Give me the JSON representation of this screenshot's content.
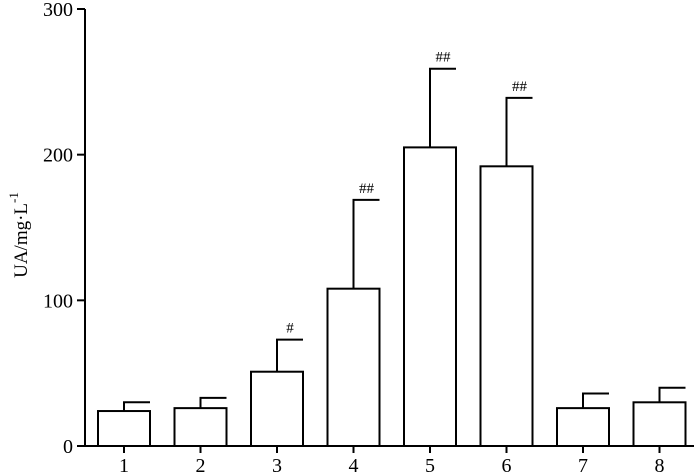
{
  "chart_data": {
    "type": "bar",
    "title": "",
    "xlabel": "",
    "ylabel": "UA/mg·L",
    "ylabel_exponent": "-1",
    "ylim": [
      0,
      300
    ],
    "yticks": [
      0,
      100,
      200,
      300
    ],
    "categories": [
      "1",
      "2",
      "3",
      "4",
      "5",
      "6",
      "7",
      "8"
    ],
    "values": [
      24,
      26,
      51,
      108,
      205,
      192,
      26,
      30
    ],
    "error_upper": [
      30,
      33,
      73,
      169,
      259,
      239,
      36,
      40
    ],
    "annotations": [
      "",
      "",
      "#",
      "##",
      "##",
      "##",
      "",
      ""
    ],
    "grid": false,
    "bar_fill": "#ffffff",
    "bar_stroke": "#000000"
  }
}
